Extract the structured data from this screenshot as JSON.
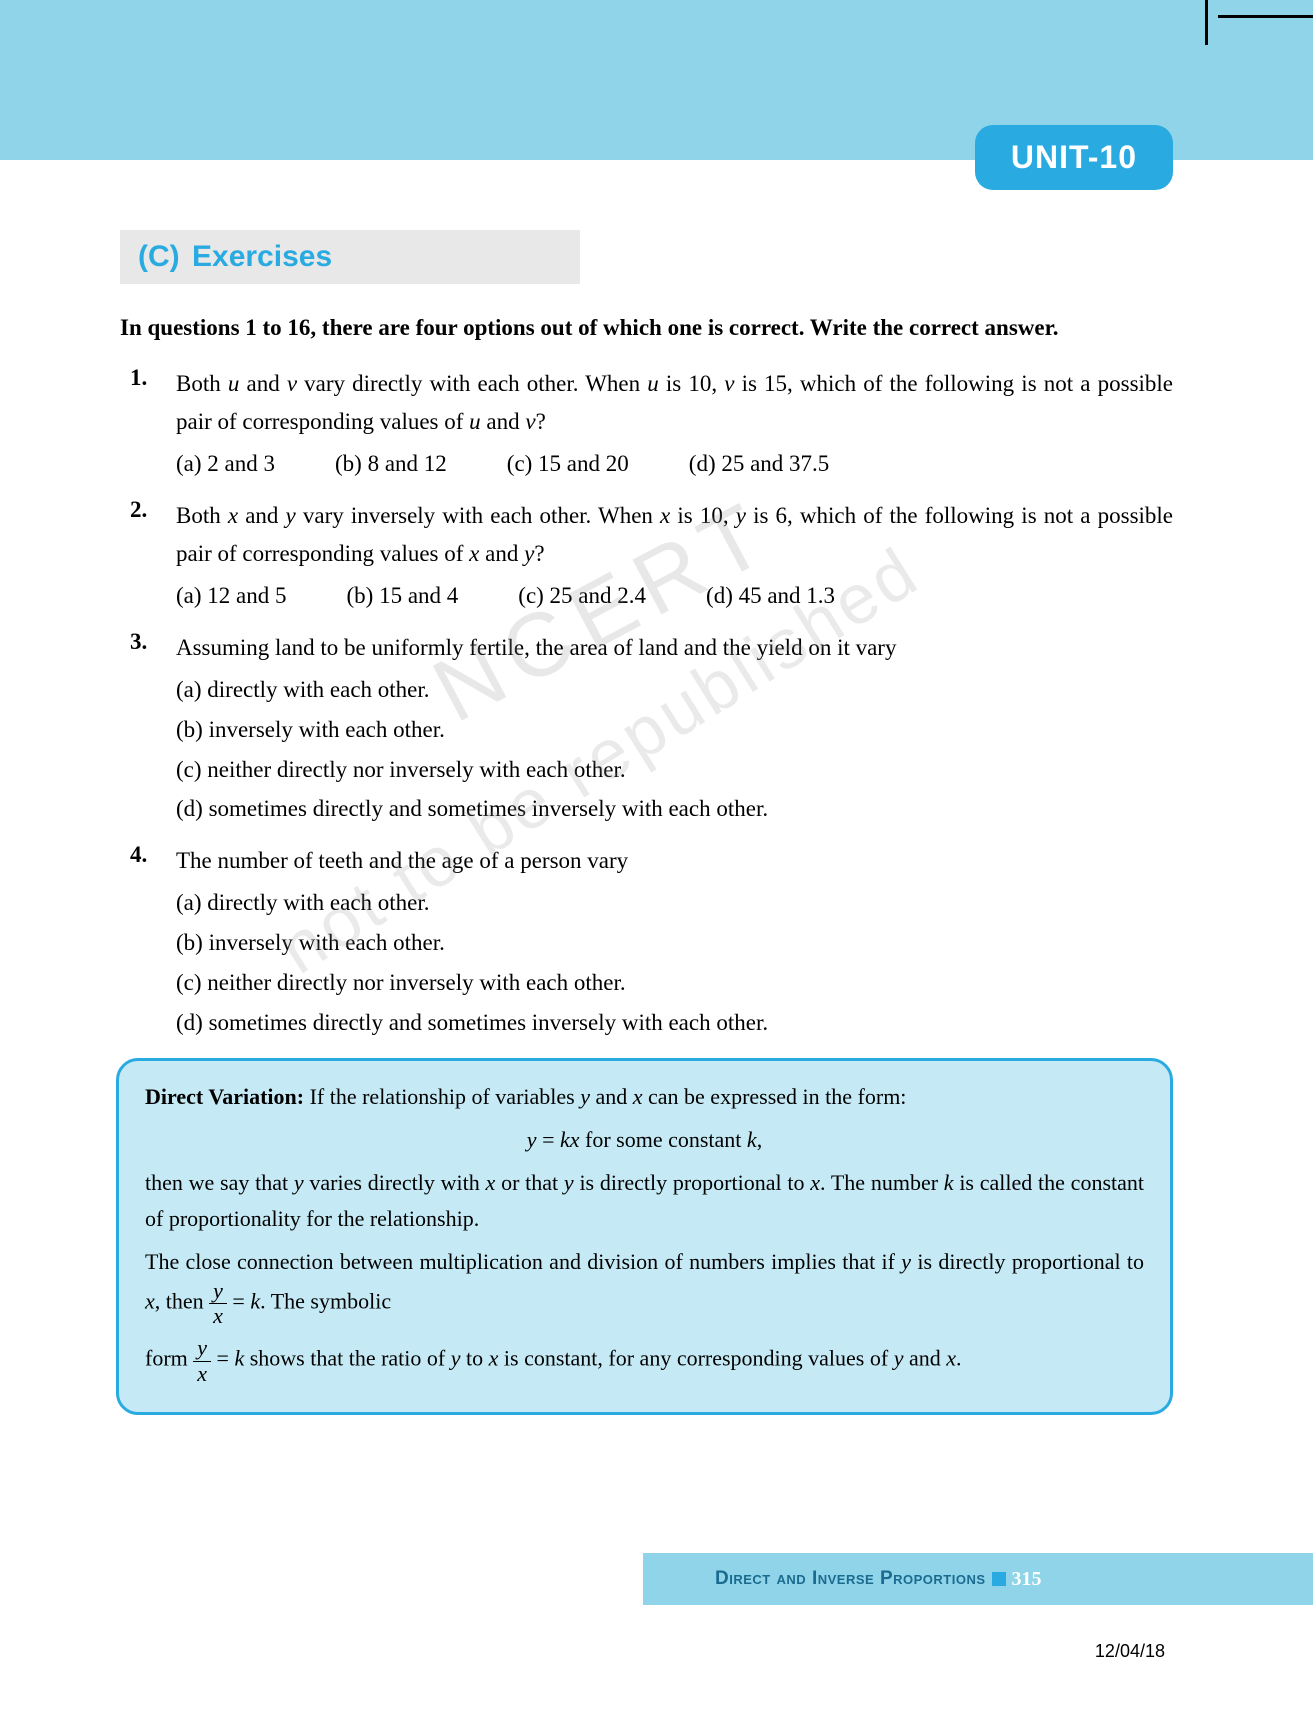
{
  "unit_label": "UNIT-10",
  "section": {
    "prefix": "(C)",
    "title": "Exercises"
  },
  "intro": "In questions 1 to 16, there are four options out of which one is correct. Write the correct answer.",
  "questions": [
    {
      "num": "1.",
      "text_parts": [
        "Both ",
        "u",
        " and ",
        "v",
        " vary directly with each other. When ",
        "u",
        " is 10, ",
        "v",
        " is 15, which of the following is not a possible pair of corresponding values of ",
        "u",
        " and ",
        "v",
        "?"
      ],
      "options_layout": "row",
      "options": [
        {
          "label": "(a)",
          "text": "2 and 3"
        },
        {
          "label": "(b)",
          "text": "8 and 12"
        },
        {
          "label": "(c)",
          "text": "15 and 20"
        },
        {
          "label": "(d)",
          "text": "25 and 37.5"
        }
      ]
    },
    {
      "num": "2.",
      "text_parts": [
        "Both ",
        "x",
        " and ",
        "y",
        " vary inversely with each other. When ",
        "x",
        " is 10, ",
        "y",
        " is 6, which of the following is not a possible pair of corresponding values of ",
        "x",
        " and ",
        "y",
        "?"
      ],
      "options_layout": "row",
      "options": [
        {
          "label": "(a)",
          "text": "12 and 5"
        },
        {
          "label": "(b)",
          "text": "15 and 4"
        },
        {
          "label": "(c)",
          "text": "25 and 2.4"
        },
        {
          "label": "(d)",
          "text": "45 and 1.3"
        }
      ]
    },
    {
      "num": "3.",
      "text_parts": [
        "Assuming land to be uniformly fertile, the area of land and the yield on it vary"
      ],
      "options_layout": "col",
      "options": [
        {
          "label": "(a)",
          "text": "directly with each other."
        },
        {
          "label": "(b)",
          "text": "inversely with each other."
        },
        {
          "label": "(c)",
          "text": "neither directly nor inversely with each other."
        },
        {
          "label": "(d)",
          "text": "sometimes directly and sometimes inversely with each other."
        }
      ]
    },
    {
      "num": "4.",
      "text_parts": [
        "The number of teeth and the age of a person vary"
      ],
      "options_layout": "col",
      "options": [
        {
          "label": "(a)",
          "text": "directly with each other."
        },
        {
          "label": "(b)",
          "text": "inversely with each other."
        },
        {
          "label": "(c)",
          "text": "neither directly nor inversely with each other."
        },
        {
          "label": "(d)",
          "text": "sometimes directly and sometimes inversely with each other."
        }
      ]
    }
  ],
  "info_box": {
    "title": "Direct Variation:",
    "line1_a": "If the relationship of variables ",
    "line1_b": " and ",
    "line1_c": " can be expressed in the form:",
    "formula_a": "y",
    "formula_eq": " = ",
    "formula_b": "kx",
    "formula_tail": " for some constant ",
    "formula_k": "k",
    "line2_a": "then we say that ",
    "line2_b": " varies directly with ",
    "line2_c": " or that ",
    "line2_d": " is directly proportional to ",
    "line2_e": ". The number ",
    "line2_f": " is called the constant of proportionality for the relationship.",
    "line3": "The close connection between multiplication and division of numbers implies that if ",
    "line3_b": " is directly proportional to ",
    "line3_c": ", then ",
    "line3_tail": ". The symbolic",
    "line4_a": "form ",
    "line4_b": " shows that the ratio of ",
    "line4_c": " to ",
    "line4_d": " is constant, for any corresponding values of ",
    "line4_e": " and ",
    "frac_num": "y",
    "frac_den": "x",
    "frac_eq": " = ",
    "frac_k": "k"
  },
  "footer": {
    "title": "Direct and Inverse Proportions",
    "page_num": "315"
  },
  "date": "12/04/18",
  "watermarks": {
    "w1": "NCERT",
    "w2": "not to be republished"
  },
  "colors": {
    "band": "#8fd4e8",
    "accent": "#29abe2",
    "box_bg": "#c5eaf5",
    "footer_text": "#1a6b8f"
  }
}
